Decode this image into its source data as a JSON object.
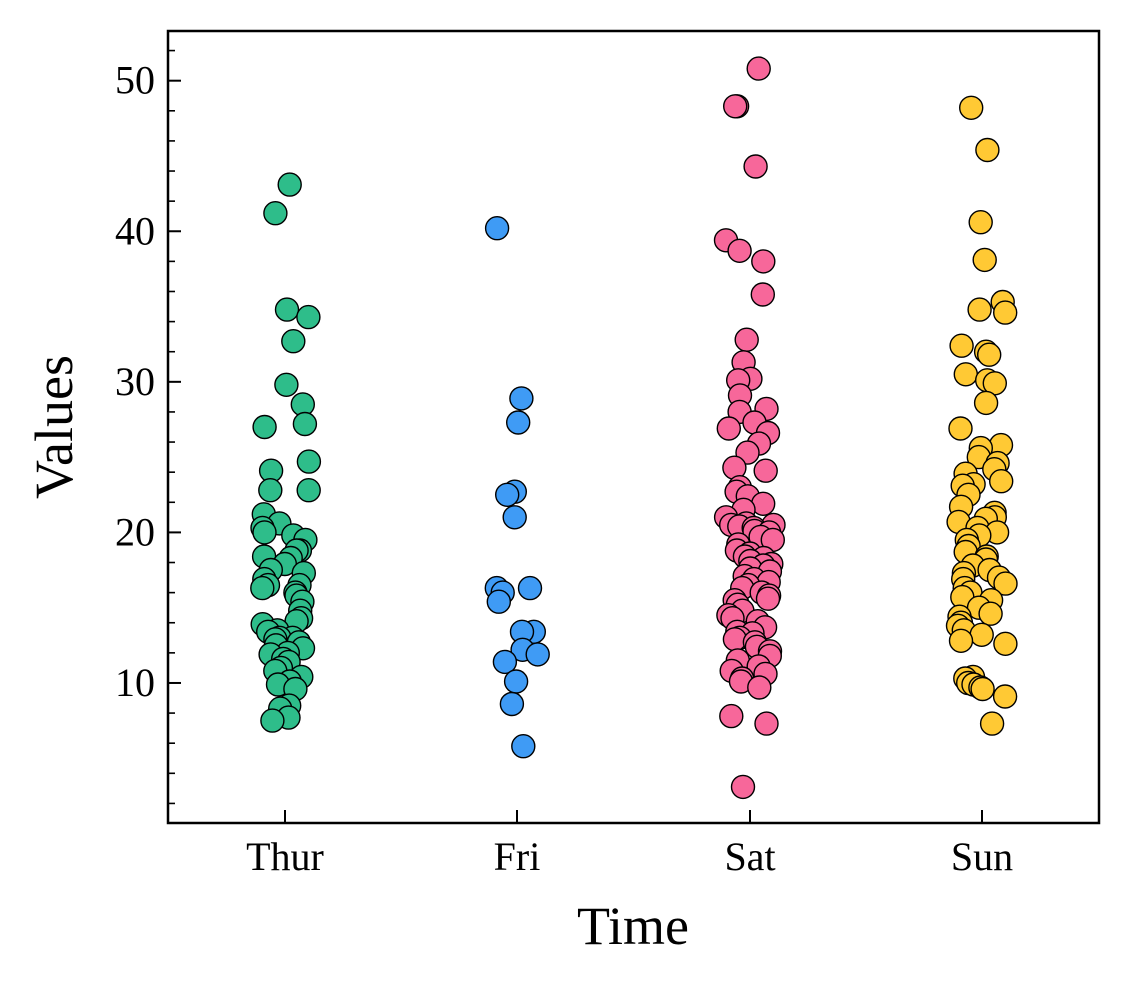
{
  "chart_data": {
    "type": "scatter",
    "subtype": "strip",
    "title": "",
    "xlabel": "Time",
    "ylabel": "Values",
    "categories": [
      "Thur",
      "Fri",
      "Sat",
      "Sun"
    ],
    "ylim": [
      0.7,
      53.3
    ],
    "yticks": [
      10,
      20,
      30,
      40,
      50
    ],
    "ytick_labels": [
      "10",
      "20",
      "30",
      "40",
      "50"
    ],
    "grid": false,
    "legend": "none",
    "series": [
      {
        "category": "Thur",
        "color": "#2ebd8a",
        "values": [
          43.1,
          41.2,
          34.8,
          34.3,
          32.7,
          29.8,
          28.5,
          27.2,
          27.0,
          24.7,
          24.1,
          22.8,
          22.8,
          21.2,
          20.6,
          20.3,
          20.0,
          19.8,
          19.5,
          18.8,
          18.8,
          18.4,
          18.3,
          17.9,
          17.5,
          17.3,
          16.9,
          16.5,
          16.5,
          16.3,
          16.0,
          15.8,
          15.4,
          14.8,
          14.3,
          14.1,
          13.9,
          13.5,
          13.4,
          13.0,
          13.0,
          12.9,
          12.7,
          12.5,
          12.3,
          12.0,
          11.9,
          11.6,
          11.4,
          11.0,
          10.8,
          10.4,
          10.1,
          9.9,
          9.6,
          8.5,
          8.3,
          7.7,
          7.5
        ]
      },
      {
        "category": "Fri",
        "color": "#3f9bf5",
        "values": [
          40.2,
          28.9,
          27.3,
          22.7,
          22.5,
          21.0,
          16.3,
          16.3,
          16.0,
          15.4,
          13.4,
          13.4,
          12.2,
          11.9,
          11.4,
          10.1,
          8.6,
          5.8
        ]
      },
      {
        "category": "Sat",
        "color": "#f7679a",
        "values": [
          50.8,
          48.3,
          48.3,
          44.3,
          39.4,
          38.7,
          38.0,
          35.8,
          32.8,
          31.3,
          30.2,
          30.1,
          29.1,
          28.2,
          28.0,
          27.3,
          26.9,
          26.6,
          25.9,
          25.3,
          24.3,
          24.1,
          23.0,
          22.7,
          22.4,
          21.9,
          21.5,
          21.0,
          20.6,
          20.5,
          20.5,
          20.4,
          20.3,
          20.1,
          20.0,
          19.7,
          19.5,
          19.2,
          18.8,
          18.6,
          18.4,
          18.3,
          18.1,
          17.9,
          17.8,
          17.6,
          17.4,
          17.1,
          16.9,
          16.7,
          16.5,
          16.3,
          16.0,
          15.8,
          15.6,
          15.5,
          15.2,
          14.8,
          14.5,
          14.3,
          14.1,
          13.7,
          13.4,
          13.3,
          13.0,
          12.9,
          12.7,
          12.4,
          12.1,
          11.8,
          11.5,
          11.1,
          10.8,
          10.6,
          10.3,
          10.1,
          9.7,
          7.8,
          7.3,
          3.1
        ]
      },
      {
        "category": "Sun",
        "color": "#ffc934",
        "values": [
          48.2,
          45.4,
          40.6,
          38.1,
          35.3,
          34.8,
          34.6,
          32.4,
          32.0,
          31.8,
          30.5,
          30.1,
          29.9,
          28.6,
          26.9,
          25.8,
          25.6,
          25.0,
          24.6,
          24.2,
          23.9,
          23.4,
          23.2,
          23.1,
          22.5,
          21.7,
          21.3,
          21.0,
          20.9,
          20.7,
          20.3,
          20.0,
          19.8,
          19.5,
          19.1,
          18.7,
          18.4,
          18.2,
          17.8,
          17.5,
          17.3,
          17.0,
          16.9,
          16.6,
          16.3,
          16.0,
          15.7,
          15.5,
          15.0,
          14.6,
          14.4,
          14.0,
          13.8,
          13.5,
          13.2,
          12.8,
          12.6,
          10.4,
          10.3,
          10.0,
          9.9,
          9.7,
          9.6,
          9.1,
          7.3
        ]
      }
    ]
  }
}
